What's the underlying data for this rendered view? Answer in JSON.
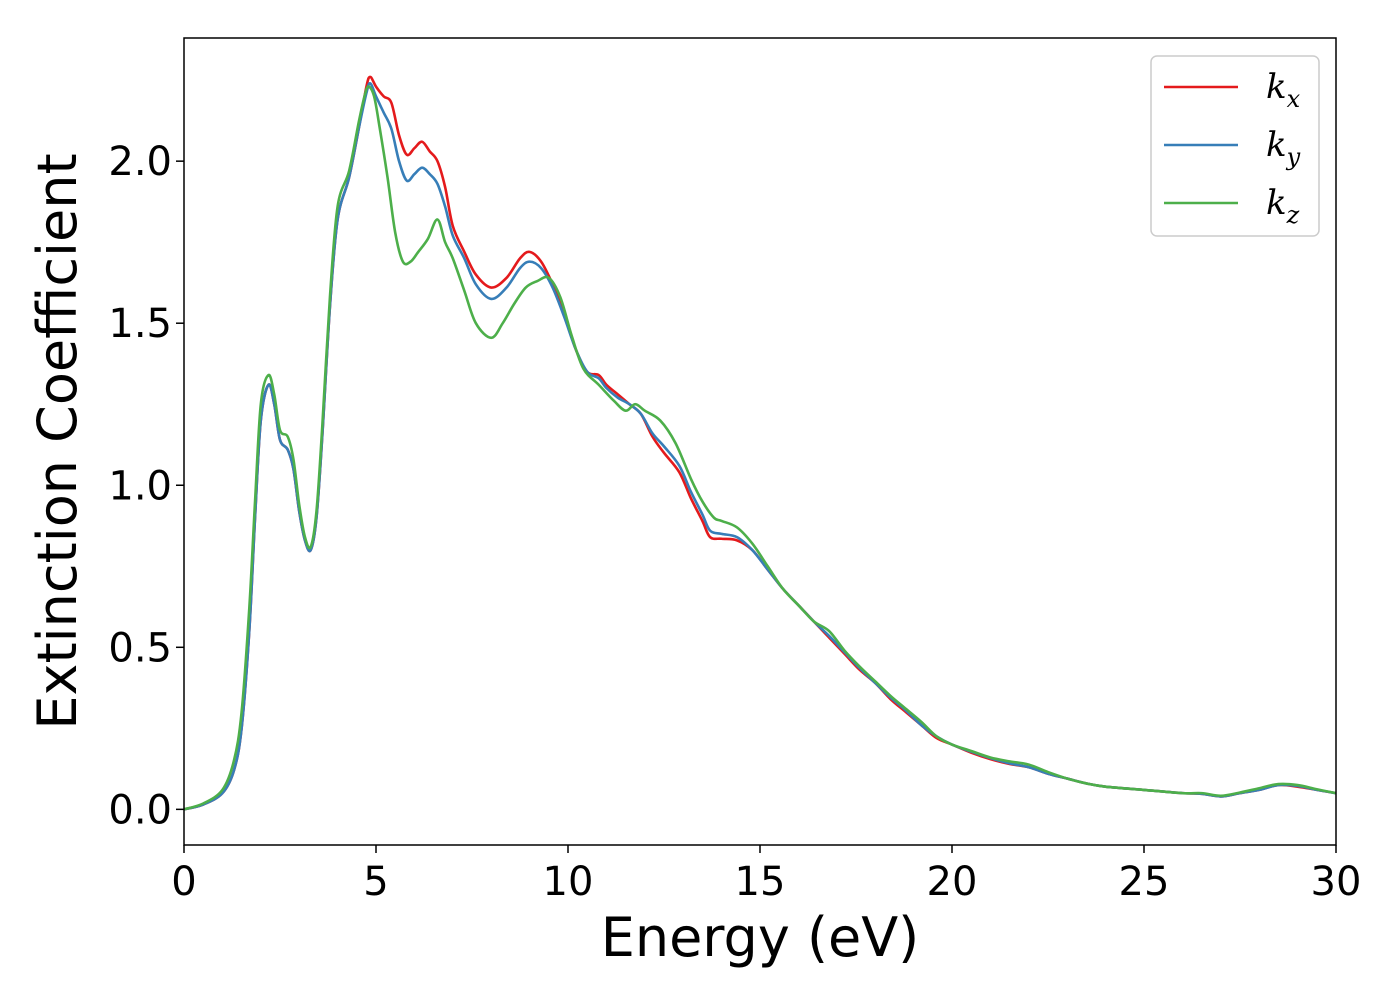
{
  "chart_data": {
    "type": "line",
    "title": "",
    "xlabel": "Energy (eV)",
    "ylabel": "Extinction Coefficient",
    "xlim": [
      0,
      30
    ],
    "ylim": [
      -0.11,
      2.38
    ],
    "xticks": [
      0,
      5,
      10,
      15,
      20,
      25,
      30
    ],
    "yticks": [
      "0.0",
      "0.5",
      "1.0",
      "1.5",
      "2.0"
    ],
    "grid": false,
    "legend_position": "top-right",
    "series": [
      {
        "name": "k_x",
        "legend_base": "k",
        "legend_sub": "x",
        "color": "#e41a1c",
        "points": [
          [
            0,
            0
          ],
          [
            0.5,
            0.015
          ],
          [
            1,
            0.05
          ],
          [
            1.3,
            0.12
          ],
          [
            1.5,
            0.25
          ],
          [
            1.7,
            0.55
          ],
          [
            1.85,
            0.9
          ],
          [
            2.0,
            1.2
          ],
          [
            2.2,
            1.31
          ],
          [
            2.35,
            1.25
          ],
          [
            2.5,
            1.14
          ],
          [
            2.7,
            1.11
          ],
          [
            2.85,
            1.05
          ],
          [
            3.0,
            0.92
          ],
          [
            3.15,
            0.83
          ],
          [
            3.3,
            0.8
          ],
          [
            3.45,
            0.9
          ],
          [
            3.6,
            1.15
          ],
          [
            3.8,
            1.55
          ],
          [
            4.0,
            1.82
          ],
          [
            4.3,
            1.95
          ],
          [
            4.55,
            2.1
          ],
          [
            4.75,
            2.23
          ],
          [
            4.85,
            2.26
          ],
          [
            5.0,
            2.23
          ],
          [
            5.2,
            2.2
          ],
          [
            5.4,
            2.18
          ],
          [
            5.6,
            2.08
          ],
          [
            5.8,
            2.02
          ],
          [
            6.0,
            2.04
          ],
          [
            6.2,
            2.06
          ],
          [
            6.4,
            2.03
          ],
          [
            6.6,
            2.0
          ],
          [
            6.8,
            1.92
          ],
          [
            7.0,
            1.8
          ],
          [
            7.3,
            1.72
          ],
          [
            7.6,
            1.65
          ],
          [
            8.0,
            1.61
          ],
          [
            8.4,
            1.64
          ],
          [
            8.75,
            1.7
          ],
          [
            9.0,
            1.72
          ],
          [
            9.3,
            1.69
          ],
          [
            9.6,
            1.62
          ],
          [
            9.9,
            1.53
          ],
          [
            10.2,
            1.42
          ],
          [
            10.5,
            1.35
          ],
          [
            10.8,
            1.34
          ],
          [
            11.0,
            1.31
          ],
          [
            11.3,
            1.28
          ],
          [
            11.6,
            1.25
          ],
          [
            11.9,
            1.22
          ],
          [
            12.2,
            1.15
          ],
          [
            12.5,
            1.1
          ],
          [
            12.9,
            1.04
          ],
          [
            13.2,
            0.96
          ],
          [
            13.5,
            0.89
          ],
          [
            13.7,
            0.84
          ],
          [
            14.0,
            0.835
          ],
          [
            14.4,
            0.83
          ],
          [
            14.8,
            0.8
          ],
          [
            15.2,
            0.74
          ],
          [
            15.6,
            0.68
          ],
          [
            16.0,
            0.63
          ],
          [
            16.4,
            0.58
          ],
          [
            16.8,
            0.53
          ],
          [
            17.2,
            0.48
          ],
          [
            17.6,
            0.43
          ],
          [
            18.0,
            0.39
          ],
          [
            18.4,
            0.34
          ],
          [
            18.8,
            0.3
          ],
          [
            19.2,
            0.26
          ],
          [
            19.6,
            0.22
          ],
          [
            20.0,
            0.2
          ],
          [
            20.5,
            0.175
          ],
          [
            21.0,
            0.155
          ],
          [
            21.5,
            0.14
          ],
          [
            22.0,
            0.13
          ],
          [
            22.5,
            0.11
          ],
          [
            23.0,
            0.095
          ],
          [
            23.5,
            0.08
          ],
          [
            24.0,
            0.07
          ],
          [
            25.0,
            0.06
          ],
          [
            26.0,
            0.05
          ],
          [
            26.5,
            0.048
          ],
          [
            27.0,
            0.04
          ],
          [
            27.5,
            0.05
          ],
          [
            28.0,
            0.06
          ],
          [
            28.5,
            0.075
          ],
          [
            29.0,
            0.07
          ],
          [
            29.5,
            0.06
          ],
          [
            30.0,
            0.05
          ]
        ]
      },
      {
        "name": "k_y",
        "legend_base": "k",
        "legend_sub": "y",
        "color": "#377eb8",
        "points": [
          [
            0,
            0
          ],
          [
            0.5,
            0.015
          ],
          [
            1,
            0.05
          ],
          [
            1.3,
            0.12
          ],
          [
            1.5,
            0.25
          ],
          [
            1.7,
            0.55
          ],
          [
            1.85,
            0.9
          ],
          [
            2.0,
            1.2
          ],
          [
            2.2,
            1.31
          ],
          [
            2.35,
            1.25
          ],
          [
            2.5,
            1.14
          ],
          [
            2.7,
            1.11
          ],
          [
            2.85,
            1.05
          ],
          [
            3.0,
            0.92
          ],
          [
            3.15,
            0.83
          ],
          [
            3.3,
            0.8
          ],
          [
            3.45,
            0.9
          ],
          [
            3.6,
            1.15
          ],
          [
            3.8,
            1.55
          ],
          [
            4.0,
            1.82
          ],
          [
            4.3,
            1.95
          ],
          [
            4.55,
            2.1
          ],
          [
            4.75,
            2.21
          ],
          [
            4.85,
            2.24
          ],
          [
            5.0,
            2.2
          ],
          [
            5.2,
            2.15
          ],
          [
            5.4,
            2.1
          ],
          [
            5.6,
            2.0
          ],
          [
            5.8,
            1.94
          ],
          [
            6.0,
            1.96
          ],
          [
            6.2,
            1.98
          ],
          [
            6.4,
            1.96
          ],
          [
            6.6,
            1.93
          ],
          [
            6.8,
            1.86
          ],
          [
            7.0,
            1.77
          ],
          [
            7.3,
            1.7
          ],
          [
            7.6,
            1.62
          ],
          [
            8.0,
            1.575
          ],
          [
            8.4,
            1.61
          ],
          [
            8.75,
            1.67
          ],
          [
            9.0,
            1.69
          ],
          [
            9.3,
            1.67
          ],
          [
            9.6,
            1.61
          ],
          [
            9.9,
            1.52
          ],
          [
            10.2,
            1.42
          ],
          [
            10.5,
            1.35
          ],
          [
            10.8,
            1.33
          ],
          [
            11.0,
            1.3
          ],
          [
            11.3,
            1.27
          ],
          [
            11.6,
            1.25
          ],
          [
            11.9,
            1.22
          ],
          [
            12.2,
            1.16
          ],
          [
            12.5,
            1.12
          ],
          [
            12.9,
            1.06
          ],
          [
            13.2,
            0.98
          ],
          [
            13.5,
            0.91
          ],
          [
            13.7,
            0.86
          ],
          [
            14.0,
            0.85
          ],
          [
            14.4,
            0.84
          ],
          [
            14.8,
            0.8
          ],
          [
            15.2,
            0.74
          ],
          [
            15.6,
            0.68
          ],
          [
            16.0,
            0.63
          ],
          [
            16.4,
            0.58
          ],
          [
            16.8,
            0.535
          ],
          [
            17.2,
            0.485
          ],
          [
            17.6,
            0.435
          ],
          [
            18.0,
            0.39
          ],
          [
            18.4,
            0.345
          ],
          [
            18.8,
            0.305
          ],
          [
            19.2,
            0.26
          ],
          [
            19.6,
            0.225
          ],
          [
            20.0,
            0.2
          ],
          [
            20.5,
            0.178
          ],
          [
            21.0,
            0.158
          ],
          [
            21.5,
            0.142
          ],
          [
            22.0,
            0.13
          ],
          [
            22.5,
            0.11
          ],
          [
            23.0,
            0.095
          ],
          [
            23.5,
            0.08
          ],
          [
            24.0,
            0.07
          ],
          [
            25.0,
            0.06
          ],
          [
            26.0,
            0.05
          ],
          [
            26.5,
            0.048
          ],
          [
            27.0,
            0.04
          ],
          [
            27.5,
            0.05
          ],
          [
            28.0,
            0.06
          ],
          [
            28.5,
            0.075
          ],
          [
            29.0,
            0.072
          ],
          [
            29.5,
            0.06
          ],
          [
            30.0,
            0.05
          ]
        ]
      },
      {
        "name": "k_z",
        "legend_base": "k",
        "legend_sub": "z",
        "color": "#4daf4a",
        "points": [
          [
            0,
            0
          ],
          [
            0.5,
            0.018
          ],
          [
            1,
            0.06
          ],
          [
            1.3,
            0.15
          ],
          [
            1.5,
            0.3
          ],
          [
            1.7,
            0.62
          ],
          [
            1.85,
            0.95
          ],
          [
            2.0,
            1.25
          ],
          [
            2.2,
            1.34
          ],
          [
            2.35,
            1.28
          ],
          [
            2.5,
            1.17
          ],
          [
            2.7,
            1.15
          ],
          [
            2.85,
            1.08
          ],
          [
            3.0,
            0.94
          ],
          [
            3.15,
            0.84
          ],
          [
            3.3,
            0.81
          ],
          [
            3.45,
            0.92
          ],
          [
            3.6,
            1.18
          ],
          [
            3.8,
            1.58
          ],
          [
            4.0,
            1.86
          ],
          [
            4.3,
            1.97
          ],
          [
            4.55,
            2.12
          ],
          [
            4.7,
            2.2
          ],
          [
            4.8,
            2.23
          ],
          [
            4.95,
            2.2
          ],
          [
            5.1,
            2.1
          ],
          [
            5.3,
            1.95
          ],
          [
            5.5,
            1.78
          ],
          [
            5.7,
            1.69
          ],
          [
            5.9,
            1.69
          ],
          [
            6.1,
            1.72
          ],
          [
            6.35,
            1.76
          ],
          [
            6.6,
            1.82
          ],
          [
            6.8,
            1.75
          ],
          [
            7.0,
            1.7
          ],
          [
            7.3,
            1.6
          ],
          [
            7.6,
            1.5
          ],
          [
            8.0,
            1.455
          ],
          [
            8.3,
            1.5
          ],
          [
            8.6,
            1.56
          ],
          [
            8.9,
            1.61
          ],
          [
            9.2,
            1.63
          ],
          [
            9.5,
            1.64
          ],
          [
            9.8,
            1.58
          ],
          [
            10.1,
            1.46
          ],
          [
            10.4,
            1.36
          ],
          [
            10.8,
            1.31
          ],
          [
            11.2,
            1.26
          ],
          [
            11.5,
            1.23
          ],
          [
            11.75,
            1.25
          ],
          [
            12.0,
            1.23
          ],
          [
            12.4,
            1.2
          ],
          [
            12.8,
            1.13
          ],
          [
            13.2,
            1.02
          ],
          [
            13.5,
            0.95
          ],
          [
            13.8,
            0.9
          ],
          [
            14.0,
            0.89
          ],
          [
            14.4,
            0.87
          ],
          [
            14.8,
            0.82
          ],
          [
            15.2,
            0.75
          ],
          [
            15.6,
            0.68
          ],
          [
            16.0,
            0.63
          ],
          [
            16.4,
            0.58
          ],
          [
            16.8,
            0.55
          ],
          [
            17.2,
            0.49
          ],
          [
            17.6,
            0.44
          ],
          [
            18.0,
            0.395
          ],
          [
            18.4,
            0.35
          ],
          [
            18.8,
            0.31
          ],
          [
            19.2,
            0.27
          ],
          [
            19.6,
            0.225
          ],
          [
            20.0,
            0.2
          ],
          [
            20.5,
            0.18
          ],
          [
            21.0,
            0.16
          ],
          [
            21.5,
            0.148
          ],
          [
            22.0,
            0.138
          ],
          [
            22.5,
            0.115
          ],
          [
            23.0,
            0.095
          ],
          [
            23.5,
            0.08
          ],
          [
            24.0,
            0.07
          ],
          [
            25.0,
            0.06
          ],
          [
            26.0,
            0.05
          ],
          [
            26.5,
            0.05
          ],
          [
            27.0,
            0.042
          ],
          [
            27.5,
            0.052
          ],
          [
            28.0,
            0.065
          ],
          [
            28.5,
            0.078
          ],
          [
            29.0,
            0.075
          ],
          [
            29.5,
            0.062
          ],
          [
            30.0,
            0.05
          ]
        ]
      }
    ]
  }
}
